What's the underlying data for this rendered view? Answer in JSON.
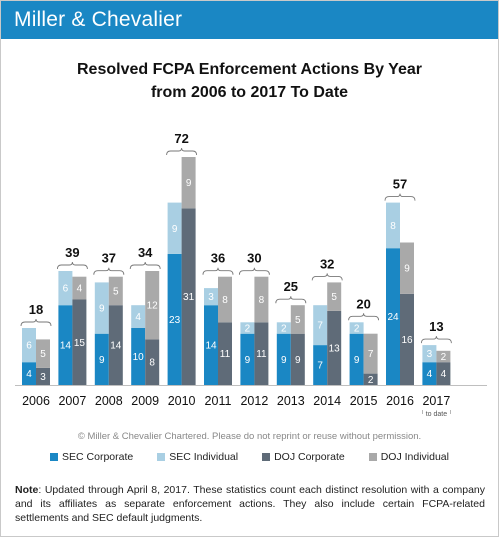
{
  "brand": "Miller & Chevalier",
  "title_line1": "Resolved FCPA Enforcement Actions By Year",
  "title_line2": "from 2006 to 2017 To Date",
  "copyright": "© Miller & Chevalier Chartered. Please do not reprint or reuse without permission.",
  "note": {
    "label": "Note",
    "text": ": Updated through April 8, 2017. These statistics count each distinct resolution with a company and its affiliates as separate enforcement actions. They also include certain FCPA-related settlements and SEC default judgments."
  },
  "colors": {
    "header": "#1a87c4",
    "sec_corporate": "#1a87c4",
    "sec_individual": "#a9cfe3",
    "doj_corporate": "#5f6b78",
    "doj_individual": "#a9a9a9"
  },
  "chart_data": {
    "type": "bar",
    "stacking": "grouped-stacked",
    "title": "Resolved FCPA Enforcement Actions By Year from 2006 to 2017 To Date",
    "categories": [
      "2006",
      "2007",
      "2008",
      "2009",
      "2010",
      "2011",
      "2012",
      "2013",
      "2014",
      "2015",
      "2016",
      "2017"
    ],
    "category_notes": {
      "2017": "to date"
    },
    "totals": [
      18,
      39,
      37,
      34,
      72,
      36,
      30,
      25,
      32,
      20,
      57,
      13
    ],
    "series": [
      {
        "name": "SEC Corporate",
        "stack": "SEC",
        "values": [
          4,
          14,
          9,
          10,
          23,
          14,
          9,
          9,
          7,
          9,
          24,
          4
        ]
      },
      {
        "name": "SEC Individual",
        "stack": "SEC",
        "values": [
          6,
          6,
          9,
          4,
          9,
          3,
          2,
          2,
          7,
          2,
          8,
          3
        ]
      },
      {
        "name": "DOJ Corporate",
        "stack": "DOJ",
        "values": [
          3,
          15,
          14,
          8,
          31,
          11,
          11,
          9,
          13,
          2,
          16,
          4
        ]
      },
      {
        "name": "DOJ Individual",
        "stack": "DOJ",
        "values": [
          5,
          4,
          5,
          12,
          9,
          8,
          8,
          5,
          5,
          7,
          9,
          2
        ]
      }
    ],
    "legend_position": "bottom",
    "grid": false
  }
}
